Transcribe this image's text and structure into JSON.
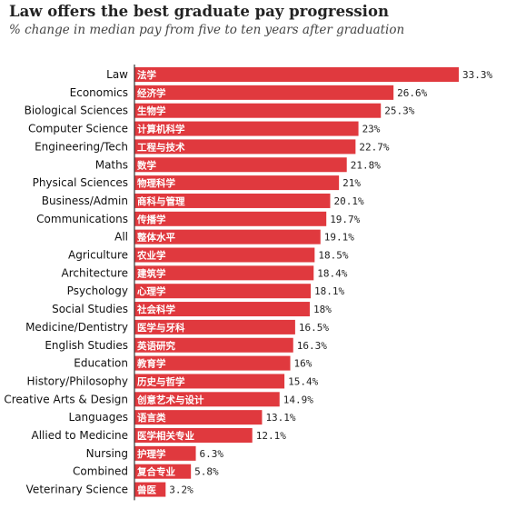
{
  "header": {
    "title": "Law offers the best graduate pay progression",
    "subtitle": "% change in median pay from five to ten years after graduation"
  },
  "colors": {
    "bar": "#e0393e",
    "axis": "#333333"
  },
  "chart_data": {
    "type": "bar",
    "orientation": "horizontal",
    "title": "Law offers the best graduate pay progression",
    "subtitle": "% change in median pay from five to ten years after graduation",
    "xlabel": "",
    "ylabel": "",
    "xlim": [
      0,
      33.3
    ],
    "grid": false,
    "legend": "none",
    "categories": [
      "Law",
      "Economics",
      "Biological Sciences",
      "Computer Science",
      "Engineering/Tech",
      "Maths",
      "Physical Sciences",
      "Business/Admin",
      "Communications",
      "All",
      "Agriculture",
      "Architecture",
      "Psychology",
      "Social Studies",
      "Medicine/Dentistry",
      "English Studies",
      "Education",
      "History/Philosophy",
      "Creative Arts & Design",
      "Languages",
      "Allied to Medicine",
      "Nursing",
      "Combined",
      "Veterinary Science"
    ],
    "bar_labels": [
      "法学",
      "经济学",
      "生物学",
      "计算机科学",
      "工程与技术",
      "数学",
      "物理科学",
      "商科与管理",
      "传播学",
      "整体水平",
      "农业学",
      "建筑学",
      "心理学",
      "社会科学",
      "医学与牙科",
      "英语研究",
      "教育学",
      "历史与哲学",
      "创意艺术与设计",
      "语言类",
      "医学相关专业",
      "护理学",
      "复合专业",
      "兽医"
    ],
    "values": [
      33.3,
      26.6,
      25.3,
      23,
      22.7,
      21.8,
      21,
      20.1,
      19.7,
      19.1,
      18.5,
      18.4,
      18.1,
      18,
      16.5,
      16.3,
      16,
      15.4,
      14.9,
      13.1,
      12.1,
      6.3,
      5.8,
      3.2
    ],
    "value_labels": [
      "33.3%",
      "26.6%",
      "25.3%",
      "23%",
      "22.7%",
      "21.8%",
      "21%",
      "20.1%",
      "19.7%",
      "19.1%",
      "18.5%",
      "18.4%",
      "18.1%",
      "18%",
      "16.5%",
      "16.3%",
      "16%",
      "15.4%",
      "14.9%",
      "13.1%",
      "12.1%",
      "6.3%",
      "5.8%",
      "3.2%"
    ]
  }
}
